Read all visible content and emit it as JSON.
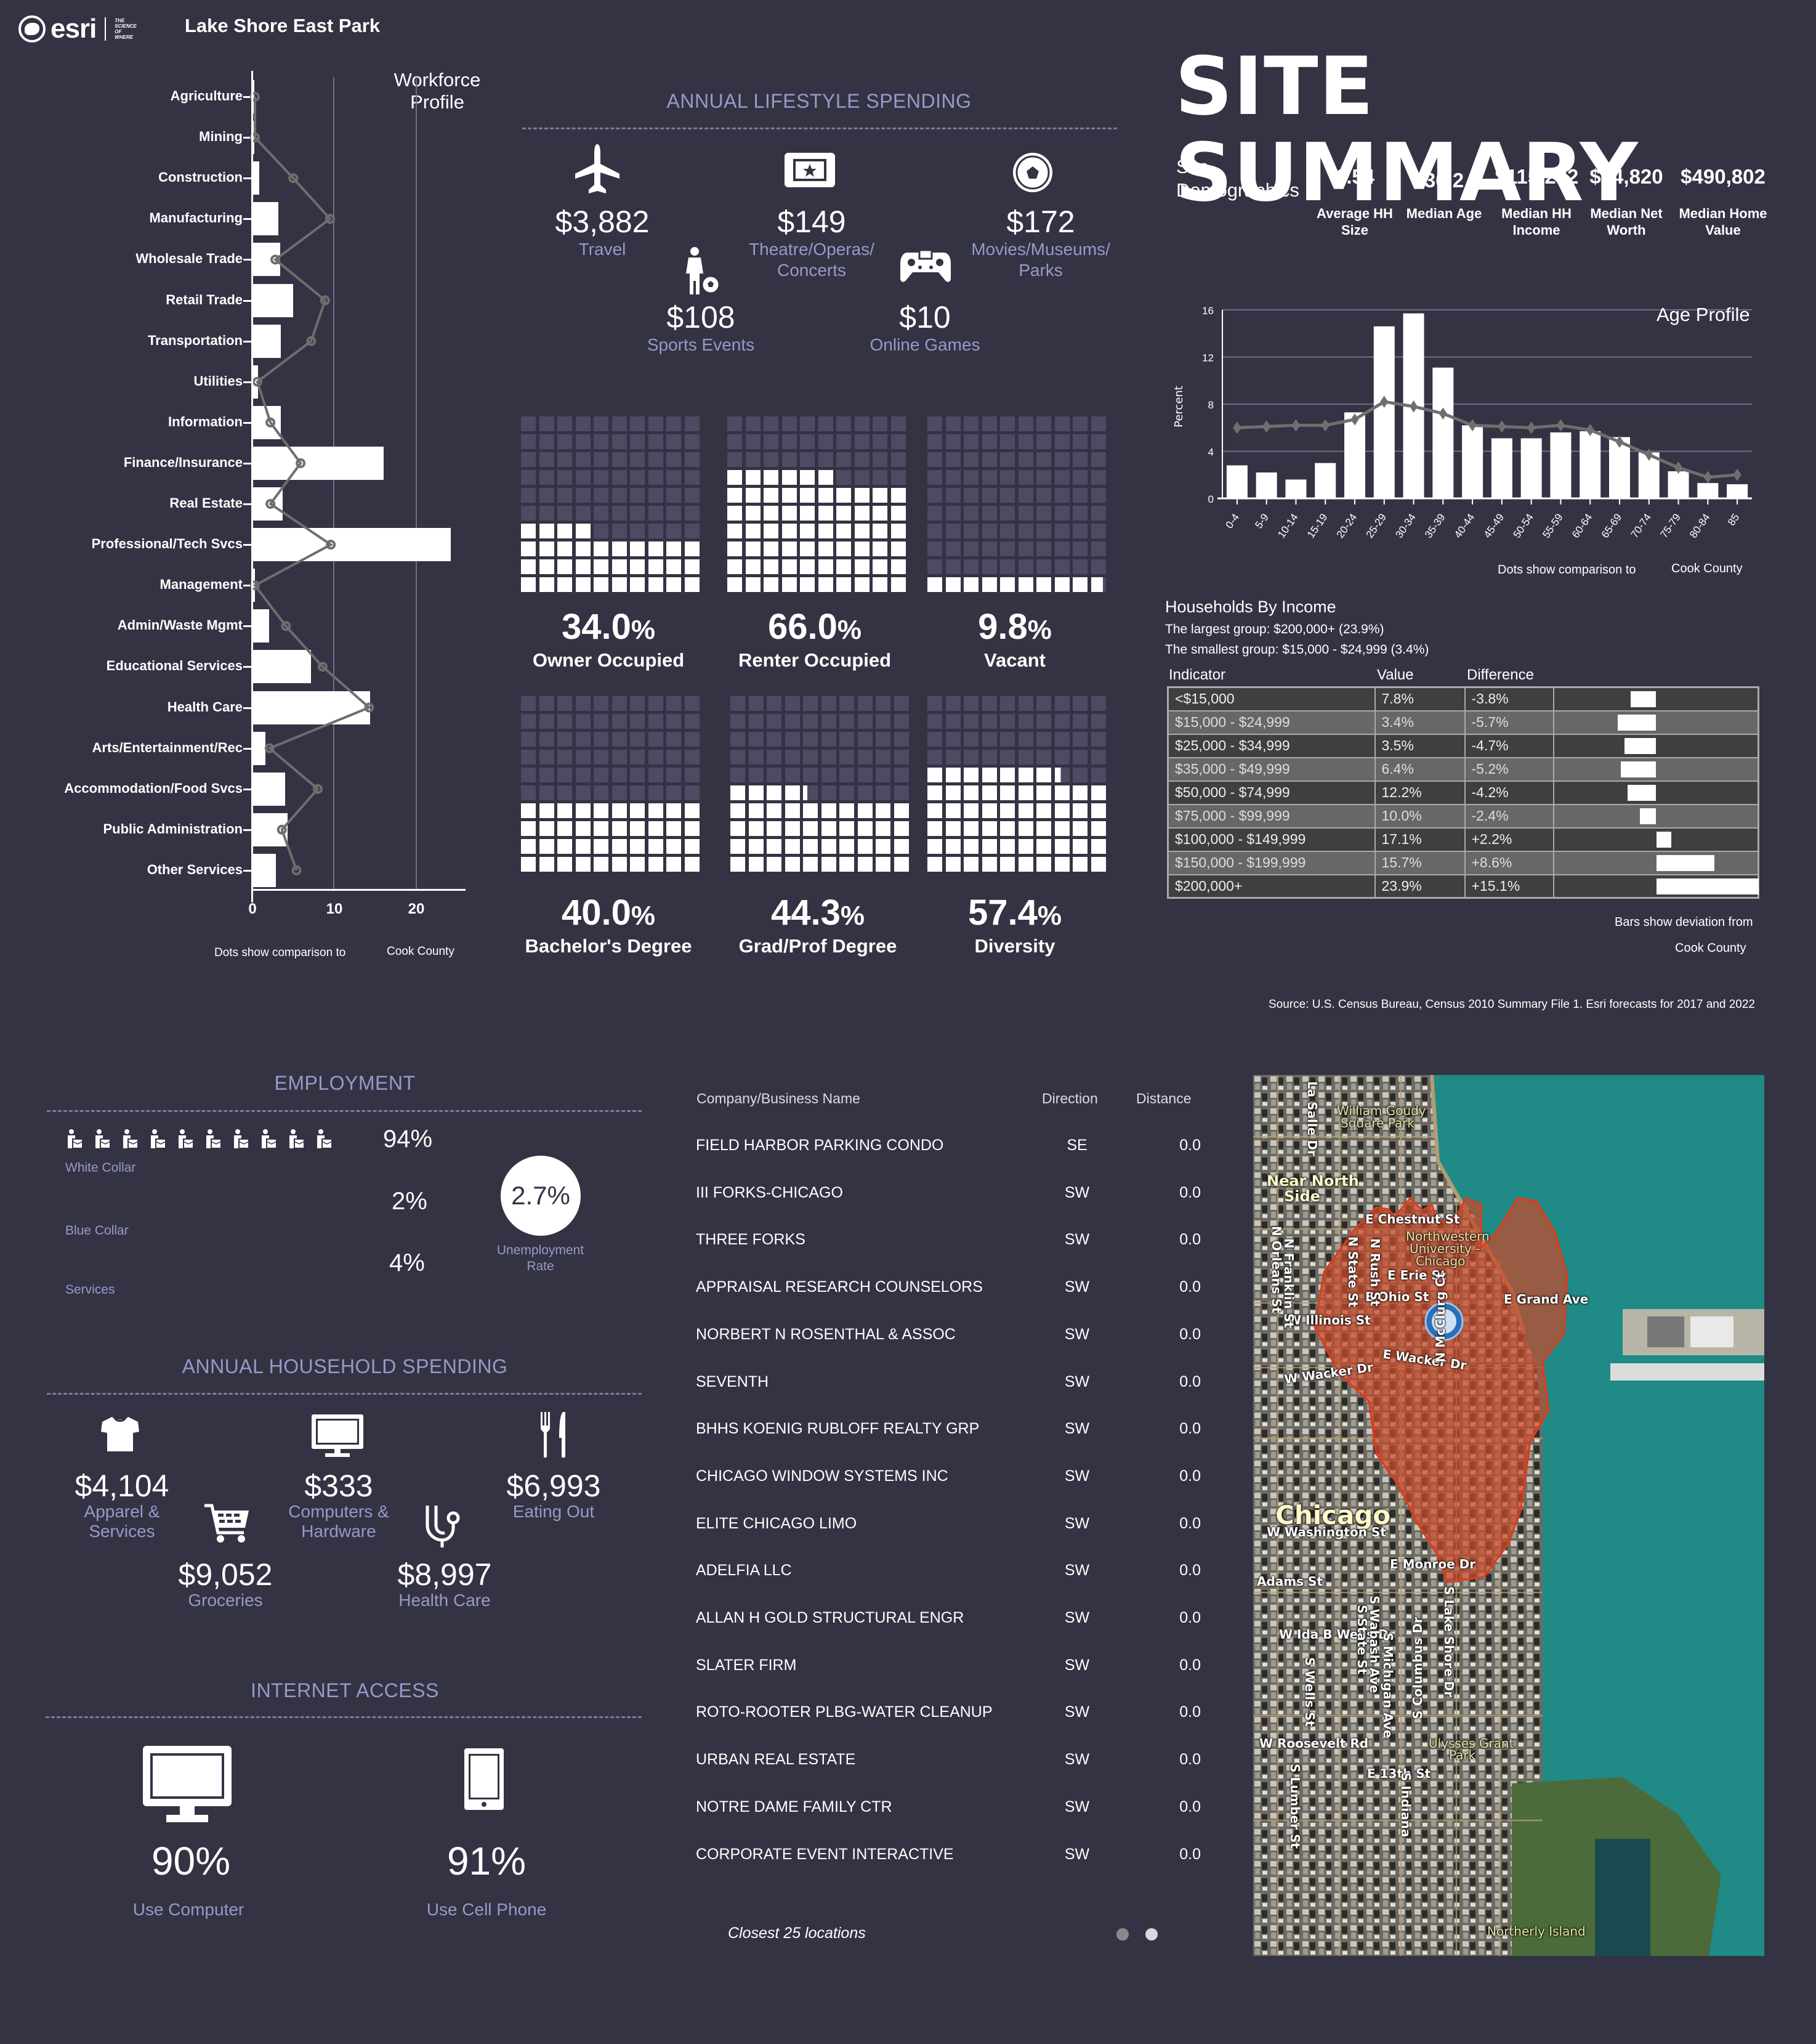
{
  "header": {
    "logo_text": "esri",
    "logo_tagline": [
      "THE",
      "SCIENCE",
      "OF",
      "WHERE"
    ],
    "site_name": "Lake Shore East Park"
  },
  "workforce": {
    "title_line1": "Workforce",
    "title_line2": "Profile",
    "note": "Dots show comparison to",
    "county": "Cook County",
    "x_ticks": [
      "0",
      "10",
      "20"
    ]
  },
  "lifestyle": {
    "title": "ANNUAL LIFESTYLE SPENDING",
    "items": [
      {
        "icon": "airplane-icon",
        "value": "$3,882",
        "label": "Travel"
      },
      {
        "icon": "ticket-icon",
        "value": "$149",
        "label": "Theatre/Operas/ Concerts"
      },
      {
        "icon": "soccer-ball-icon",
        "value": "$172",
        "label": "Movies/Museums/ Parks"
      },
      {
        "icon": "child-soccer-icon",
        "value": "$108",
        "label": "Sports Events"
      },
      {
        "icon": "gamepad-icon",
        "value": "$10",
        "label": "Online Games"
      }
    ]
  },
  "waffles": [
    {
      "pct": "34.0",
      "label": "Owner Occupied",
      "value": 34.0
    },
    {
      "pct": "66.0",
      "label": "Renter Occupied",
      "value": 66.0
    },
    {
      "pct": "9.8",
      "label": "Vacant",
      "value": 9.8
    },
    {
      "pct": "40.0",
      "label": "Bachelor's Degree",
      "value": 40.0
    },
    {
      "pct": "44.3",
      "label": "Grad/Prof Degree",
      "value": 44.3
    },
    {
      "pct": "57.4",
      "label": "Diversity",
      "value": 57.4
    }
  ],
  "summary": {
    "title": "SITE SUMMARY",
    "subtitle_line1": "Site",
    "subtitle_line2": "Demographics",
    "stats": [
      {
        "value": "1.54",
        "label_line1": "Average HH",
        "label_line2": "Size"
      },
      {
        "value": "36.2",
        "label_line1": "Median Age",
        "label_line2": ""
      },
      {
        "value": "$115,232",
        "label_line1": "Median HH",
        "label_line2": "Income"
      },
      {
        "value": "$94,820",
        "label_line1": "Median Net",
        "label_line2": "Worth"
      },
      {
        "value": "$490,802",
        "label_line1": "Median Home",
        "label_line2": "Value"
      }
    ]
  },
  "age": {
    "title": "Age Profile",
    "ylabel": "Percent",
    "note": "Dots show comparison to",
    "county": "Cook County"
  },
  "income": {
    "title": "Households By Income",
    "largest": "The largest group: $200,000+ (23.9%)",
    "smallest": "The smallest group: $15,000 - $24,999 (3.4%)",
    "headers": [
      "Indicator",
      "Value",
      "Difference"
    ],
    "rows": [
      {
        "indicator": "<$15,000",
        "value": "7.8%",
        "difference": "-3.8%",
        "diff": -3.8
      },
      {
        "indicator": "$15,000 - $24,999",
        "value": "3.4%",
        "difference": "-5.7%",
        "diff": -5.7
      },
      {
        "indicator": "$25,000 - $34,999",
        "value": "3.5%",
        "difference": "-4.7%",
        "diff": -4.7
      },
      {
        "indicator": "$35,000 - $49,999",
        "value": "6.4%",
        "difference": "-5.2%",
        "diff": -5.2
      },
      {
        "indicator": "$50,000 - $74,999",
        "value": "12.2%",
        "difference": "-4.2%",
        "diff": -4.2
      },
      {
        "indicator": "$75,000 - $99,999",
        "value": "10.0%",
        "difference": "-2.4%",
        "diff": -2.4
      },
      {
        "indicator": "$100,000 - $149,999",
        "value": "17.1%",
        "difference": "+2.2%",
        "diff": 2.2
      },
      {
        "indicator": "$150,000 - $199,999",
        "value": "15.7%",
        "difference": "+8.6%",
        "diff": 8.6
      },
      {
        "indicator": "$200,000+",
        "value": "23.9%",
        "difference": "+15.1%",
        "diff": 15.1
      }
    ],
    "note_line1": "Bars show deviation from",
    "note_line2": "Cook County",
    "source": "Source: U.S. Census Bureau, Census 2010 Summary File 1. Esri forecasts for 2017 and 2022"
  },
  "employment": {
    "title": "EMPLOYMENT",
    "rows": [
      {
        "label": "White Collar",
        "pct": "94%"
      },
      {
        "label": "Blue Collar",
        "pct": "2%"
      },
      {
        "label": "Services",
        "pct": "4%"
      }
    ],
    "unemployment_rate": "2.7%",
    "unemployment_label_line1": "Unemployment",
    "unemployment_label_line2": "Rate"
  },
  "household": {
    "title": "ANNUAL HOUSEHOLD SPENDING",
    "items": [
      {
        "icon": "tshirt-icon",
        "value": "$4,104",
        "label_line1": "Apparel &",
        "label_line2": "Services"
      },
      {
        "icon": "monitor-icon",
        "value": "$333",
        "label_line1": "Computers &",
        "label_line2": "Hardware"
      },
      {
        "icon": "fork-knife-icon",
        "value": "$6,993",
        "label_line1": "Eating Out",
        "label_line2": ""
      },
      {
        "icon": "shopping-cart-icon",
        "value": "$9,052",
        "label_line1": "Groceries",
        "label_line2": ""
      },
      {
        "icon": "stethoscope-icon",
        "value": "$8,997",
        "label_line1": "Health Care",
        "label_line2": ""
      }
    ]
  },
  "internet": {
    "title": "INTERNET ACCESS",
    "items": [
      {
        "icon": "desktop-icon",
        "pct": "90%",
        "label": "Use Computer"
      },
      {
        "icon": "cell-phone-icon",
        "pct": "91%",
        "label": "Use Cell Phone"
      }
    ]
  },
  "business": {
    "headers": [
      "Company/Business Name",
      "Direction",
      "Distance"
    ],
    "rows": [
      {
        "name": "FIELD HARBOR PARKING CONDO",
        "direction": "SE",
        "distance": "0.0"
      },
      {
        "name": "III FORKS-CHICAGO",
        "direction": "SW",
        "distance": "0.0"
      },
      {
        "name": "THREE FORKS",
        "direction": "SW",
        "distance": "0.0"
      },
      {
        "name": "APPRAISAL RESEARCH COUNSELORS",
        "direction": "SW",
        "distance": "0.0"
      },
      {
        "name": "NORBERT N ROSENTHAL & ASSOC",
        "direction": "SW",
        "distance": "0.0"
      },
      {
        "name": "SEVENTH",
        "direction": "SW",
        "distance": "0.0"
      },
      {
        "name": "BHHS KOENIG RUBLOFF REALTY GRP",
        "direction": "SW",
        "distance": "0.0"
      },
      {
        "name": "CHICAGO WINDOW SYSTEMS INC",
        "direction": "SW",
        "distance": "0.0"
      },
      {
        "name": "ELITE CHICAGO LIMO",
        "direction": "SW",
        "distance": "0.0"
      },
      {
        "name": "ADELFIA LLC",
        "direction": "SW",
        "distance": "0.0"
      },
      {
        "name": "ALLAN H GOLD STRUCTURAL ENGR",
        "direction": "SW",
        "distance": "0.0"
      },
      {
        "name": "SLATER FIRM",
        "direction": "SW",
        "distance": "0.0"
      },
      {
        "name": "ROTO-ROOTER PLBG-WATER CLEANUP",
        "direction": "SW",
        "distance": "0.0"
      },
      {
        "name": "URBAN REAL ESTATE",
        "direction": "SW",
        "distance": "0.0"
      },
      {
        "name": "NOTRE DAME FAMILY CTR",
        "direction": "SW",
        "distance": "0.0"
      },
      {
        "name": "CORPORATE EVENT INTERACTIVE",
        "direction": "SW",
        "distance": "0.0"
      }
    ],
    "footer": "Closest 25 locations",
    "pages": 2,
    "active_page": 2
  },
  "map": {
    "labels": [
      {
        "text": "William Goudy",
        "type": "park"
      },
      {
        "text": "Square Park",
        "type": "park"
      },
      {
        "text": "Near North",
        "type": "area"
      },
      {
        "text": "Side",
        "type": "area"
      },
      {
        "text": "E Chestnut St",
        "type": "street"
      },
      {
        "text": "Northwestern",
        "type": "park"
      },
      {
        "text": "University -",
        "type": "park"
      },
      {
        "text": "Chicago",
        "type": "park"
      },
      {
        "text": "E Erie St",
        "type": "street"
      },
      {
        "text": "E Ohio St",
        "type": "street"
      },
      {
        "text": "E Grand Ave",
        "type": "street"
      },
      {
        "text": "W Illinois St",
        "type": "street"
      },
      {
        "text": "E Wacker Dr",
        "type": "street"
      },
      {
        "text": "W Wacker Dr",
        "type": "street"
      },
      {
        "text": "Chicago",
        "type": "city"
      },
      {
        "text": "W Washington St",
        "type": "street"
      },
      {
        "text": "E Monroe Dr",
        "type": "street"
      },
      {
        "text": "Adams St",
        "type": "street"
      },
      {
        "text": "W Ida B Wells Dr",
        "type": "street"
      },
      {
        "text": "W Roosevelt Rd",
        "type": "street"
      },
      {
        "text": "Ulysses Grant",
        "type": "park"
      },
      {
        "text": "Park",
        "type": "park"
      },
      {
        "text": "E 13th St",
        "type": "street"
      },
      {
        "text": "Northerly Island",
        "type": "park"
      },
      {
        "text": "N Orleans St",
        "type": "street"
      },
      {
        "text": "N Franklin St",
        "type": "street"
      },
      {
        "text": "N State St",
        "type": "street"
      },
      {
        "text": "N Rush St",
        "type": "street"
      },
      {
        "text": "N McClurg Ct",
        "type": "street"
      },
      {
        "text": "La Salle Dr",
        "type": "street"
      },
      {
        "text": "S Wabash Ave",
        "type": "street"
      },
      {
        "text": "S State St",
        "type": "street"
      },
      {
        "text": "S Michigan Ave",
        "type": "street"
      },
      {
        "text": "S Columbus Dr",
        "type": "street"
      },
      {
        "text": "S Lake Shore Dr",
        "type": "street"
      },
      {
        "text": "S Wells St",
        "type": "street"
      },
      {
        "text": "S Lumber St",
        "type": "street"
      },
      {
        "text": "S Indiana",
        "type": "street"
      }
    ],
    "trade_area_color": "#c84a2a",
    "water_color": "#1f8a86"
  },
  "colors": {
    "background": "#343344",
    "accent": "#9a98c8",
    "waffle_off": "#4c4b63",
    "compare_line": "#6e6e6e"
  },
  "chart_data": [
    {
      "type": "bar",
      "orientation": "horizontal",
      "title": "Workforce Profile",
      "categories": [
        "Agriculture",
        "Mining",
        "Construction",
        "Manufacturing",
        "Wholesale Trade",
        "Retail Trade",
        "Transportation",
        "Utilities",
        "Information",
        "Finance/Insurance",
        "Real Estate",
        "Professional/Tech Svcs",
        "Management",
        "Admin/Waste Mgmt",
        "Educational Services",
        "Health Care",
        "Arts/Entertainment/Rec",
        "Accommodation/Food Svcs",
        "Public Administration",
        "Other Services"
      ],
      "series": [
        {
          "name": "Lake Shore East Park",
          "values": [
            0.2,
            0.2,
            0.8,
            3.2,
            3.4,
            5.0,
            3.5,
            0.7,
            3.5,
            16.1,
            3.7,
            24.3,
            0.3,
            2.0,
            7.2,
            14.4,
            1.6,
            4.0,
            4.3,
            2.9
          ]
        },
        {
          "name": "Cook County",
          "type": "line",
          "values": [
            0.3,
            0.3,
            5.0,
            9.5,
            2.8,
            8.9,
            7.2,
            0.6,
            2.2,
            5.9,
            2.2,
            9.6,
            0.3,
            4.1,
            8.6,
            14.3,
            2.1,
            8.0,
            3.6,
            5.4
          ]
        }
      ],
      "xlim": [
        0,
        26
      ],
      "xticks": [
        0,
        10,
        20
      ],
      "grid": true,
      "note": "Dots show comparison to Cook County"
    },
    {
      "type": "bar",
      "title": "Age Profile",
      "ylabel": "Percent",
      "categories": [
        "0-4",
        "5-9",
        "10-14",
        "15-19",
        "20-24",
        "25-29",
        "30-34",
        "35-39",
        "40-44",
        "45-49",
        "50-54",
        "55-59",
        "60-64",
        "65-69",
        "70-74",
        "75-79",
        "80-84",
        "85"
      ],
      "series": [
        {
          "name": "Lake Shore East Park",
          "values": [
            2.8,
            2.2,
            1.6,
            3.0,
            7.3,
            14.6,
            15.7,
            11.1,
            6.2,
            5.1,
            5.1,
            5.6,
            5.7,
            5.2,
            3.9,
            2.3,
            1.3,
            1.2
          ]
        },
        {
          "name": "Cook County",
          "type": "line",
          "values": [
            6.0,
            6.1,
            6.2,
            6.2,
            6.7,
            8.2,
            7.8,
            7.2,
            6.2,
            6.1,
            6.0,
            6.2,
            5.8,
            4.8,
            3.7,
            2.6,
            1.8,
            2.0
          ]
        }
      ],
      "ylim": [
        0,
        16
      ],
      "yticks": [
        0,
        4,
        8,
        12,
        16
      ],
      "grid": true,
      "note": "Dots show comparison to Cook County"
    },
    {
      "type": "table",
      "title": "Households By Income",
      "categories": [
        "<$15,000",
        "$15,000 - $24,999",
        "$25,000 - $34,999",
        "$35,000 - $49,999",
        "$50,000 - $74,999",
        "$75,000 - $99,999",
        "$100,000 - $149,999",
        "$150,000 - $199,999",
        "$200,000+"
      ],
      "series": [
        {
          "name": "Value",
          "values": [
            7.8,
            3.4,
            3.5,
            6.4,
            12.2,
            10.0,
            17.1,
            15.7,
            23.9
          ]
        },
        {
          "name": "Difference",
          "values": [
            -3.8,
            -5.7,
            -4.7,
            -5.2,
            -4.2,
            -2.4,
            2.2,
            8.6,
            15.1
          ]
        }
      ]
    }
  ]
}
